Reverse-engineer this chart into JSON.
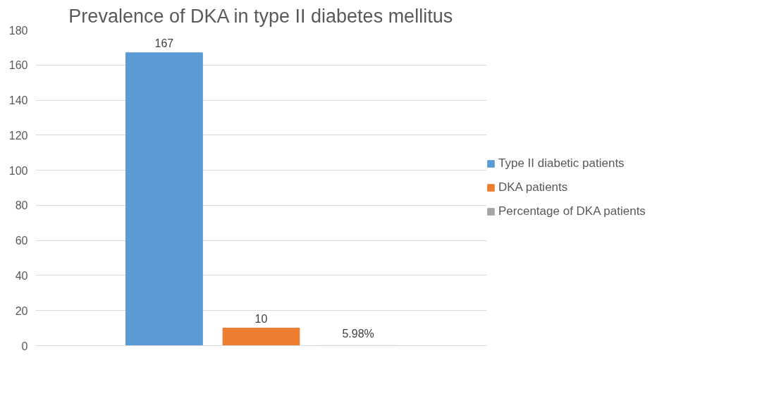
{
  "chart_data": {
    "type": "bar",
    "title": "Prevalence of DKA in type II diabetes mellitus",
    "categories": [
      null
    ],
    "series": [
      {
        "name": "Type II diabetic patients",
        "color": "#5b9bd5",
        "values": [
          167
        ],
        "value_labels": [
          "167"
        ]
      },
      {
        "name": "DKA patients",
        "color": "#ed7d31",
        "values": [
          10
        ],
        "value_labels": [
          "10"
        ]
      },
      {
        "name": "Percentage of DKA patients",
        "color": "#a5a5a5",
        "values": [
          0.0598
        ],
        "value_labels": [
          "5.98%"
        ]
      }
    ],
    "ylim": [
      0,
      180
    ],
    "yticks": [
      0,
      20,
      40,
      60,
      80,
      100,
      120,
      140,
      160,
      180
    ],
    "grid": "y",
    "legend": "right",
    "tick_labels": "y"
  }
}
